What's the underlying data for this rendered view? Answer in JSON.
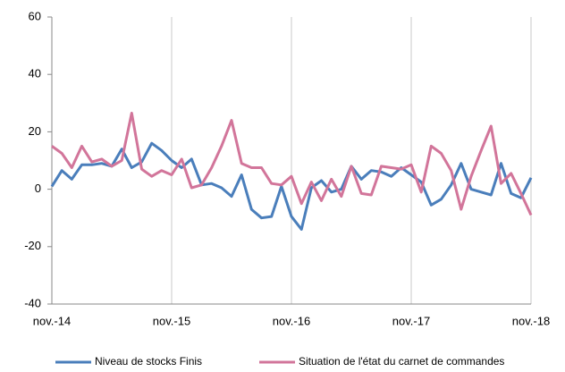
{
  "chart_data": {
    "type": "line",
    "categories": [
      "nov.-14",
      null,
      null,
      null,
      null,
      null,
      null,
      null,
      null,
      null,
      null,
      null,
      "nov.-15",
      null,
      null,
      null,
      null,
      null,
      null,
      null,
      null,
      null,
      null,
      null,
      "nov.-16",
      null,
      null,
      null,
      null,
      null,
      null,
      null,
      null,
      null,
      null,
      null,
      "nov.-17",
      null,
      null,
      null,
      null,
      null,
      null,
      null,
      null,
      null,
      null,
      null,
      "nov.-18"
    ],
    "series": [
      {
        "name": "Niveau de stocks Finis",
        "color": "#4a7ebb",
        "values": [
          1,
          6.5,
          3.5,
          8.5,
          8.5,
          9,
          8,
          14,
          7.5,
          9.5,
          16,
          13.5,
          10,
          7.5,
          10.5,
          1.5,
          2,
          0.5,
          -2.5,
          5,
          -7,
          -10,
          -9.5,
          1,
          -9.5,
          -14,
          0.5,
          3,
          -1,
          0,
          8,
          3.5,
          6.5,
          6,
          4.5,
          7.5,
          5,
          2.5,
          -5.5,
          -3.5,
          1.5,
          9,
          0,
          -1,
          -2,
          9,
          -1.5,
          -3,
          4
        ]
      },
      {
        "name": "Situation de l'état du carnet de commandes",
        "color": "#d2759a",
        "values": [
          15,
          12.5,
          7.5,
          15,
          9.5,
          10.5,
          8,
          10,
          26.5,
          7,
          4.5,
          6.5,
          5,
          10.5,
          0.5,
          1.5,
          7.5,
          15,
          24,
          9,
          7.5,
          7.5,
          2,
          1.5,
          4.5,
          -5,
          2.5,
          -4,
          3.5,
          -2.5,
          8,
          -1.5,
          -2,
          8,
          7.5,
          7,
          8.5,
          -1,
          15,
          12.5,
          6.5,
          -7,
          4.5,
          13.5,
          22,
          2,
          5.5,
          -1.5,
          -9
        ]
      }
    ],
    "ylim": [
      -40,
      60
    ],
    "yticks": [
      -40,
      -20,
      0,
      20,
      40,
      60
    ],
    "grid": "x",
    "legend": "bottom"
  }
}
